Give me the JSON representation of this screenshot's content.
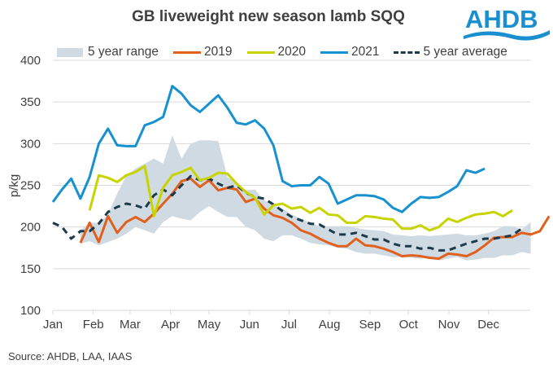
{
  "header": {
    "title": "GB liveweight  new season lamb SQQ",
    "logo_text": "AHDB"
  },
  "footer": {
    "source": "Source: AHDB, LAA, IAAS"
  },
  "colors": {
    "range": "#d0dae2",
    "s2019": "#e0601e",
    "s2020": "#c8d400",
    "s2021": "#1891d0",
    "avg": "#1c3a4a",
    "grid": "#d9d9d9",
    "text": "#404040",
    "logo": "#1a8fd0"
  },
  "chart_data": {
    "type": "line",
    "title": "GB liveweight  new season lamb SQQ",
    "xlabel": "",
    "ylabel": "p/kg",
    "ylim": [
      100,
      400
    ],
    "yticks": [
      100,
      150,
      200,
      250,
      300,
      350,
      400
    ],
    "x_unit": "week of year (1-52)",
    "month_ticks": [
      {
        "label": "Jan",
        "week": 1
      },
      {
        "label": "Feb",
        "week": 5.4
      },
      {
        "label": "Mar",
        "week": 9.4
      },
      {
        "label": "Apr",
        "week": 13.8
      },
      {
        "label": "May",
        "week": 18
      },
      {
        "label": "Jun",
        "week": 22.4
      },
      {
        "label": "Jul",
        "week": 26.7
      },
      {
        "label": "Aug",
        "week": 31.1
      },
      {
        "label": "Sep",
        "week": 35.5
      },
      {
        "label": "Oct",
        "week": 39.7
      },
      {
        "label": "Nov",
        "week": 44.1
      },
      {
        "label": "Dec",
        "week": 48.4
      }
    ],
    "grid": true,
    "legend_position": "top",
    "legend": [
      "5 year range",
      "2019",
      "2020",
      "2021",
      "5 year average"
    ],
    "range": {
      "name": "5 year range",
      "start_week": 4,
      "upper": [
        196,
        205,
        205,
        215,
        240,
        262,
        270,
        276,
        282,
        276,
        310,
        282,
        300,
        304,
        304,
        303,
        260,
        253,
        244,
        245,
        232,
        226,
        222,
        215,
        210,
        205,
        201,
        201,
        201,
        201,
        199,
        197,
        196,
        195,
        191,
        190,
        189,
        190,
        189,
        190,
        191,
        192,
        190,
        190,
        192,
        195,
        201,
        201,
        197,
        206
      ],
      "lower": [
        180,
        183,
        178,
        182,
        186,
        192,
        200,
        196,
        192,
        206,
        213,
        210,
        208,
        218,
        225,
        218,
        212,
        212,
        200,
        196,
        186,
        183,
        190,
        190,
        186,
        181,
        179,
        178,
        175,
        174,
        170,
        168,
        168,
        166,
        164,
        164,
        163,
        162,
        163,
        160,
        162,
        164,
        160,
        161,
        163,
        163,
        166,
        166,
        170,
        168
      ]
    },
    "series": [
      {
        "name": "2019",
        "start_week": 4,
        "values": [
          181,
          205,
          182,
          213,
          193,
          206,
          212,
          206,
          216,
          228,
          240,
          255,
          258,
          248,
          256,
          244,
          247,
          245,
          230,
          234,
          222,
          214,
          211,
          205,
          196,
          192,
          186,
          181,
          177,
          177,
          186,
          178,
          177,
          174,
          170,
          165,
          166,
          165,
          163,
          162,
          168,
          167,
          165,
          170,
          178,
          187,
          188,
          188,
          193,
          191,
          195,
          213
        ]
      },
      {
        "name": "2020",
        "start_week": 5,
        "values": [
          220,
          262,
          259,
          254,
          262,
          266,
          273,
          213,
          247,
          262,
          266,
          271,
          256,
          259,
          265,
          264,
          252,
          242,
          235,
          215,
          226,
          228,
          222,
          224,
          217,
          223,
          215,
          214,
          205,
          205,
          213,
          212,
          210,
          209,
          198,
          198,
          202,
          196,
          200,
          210,
          206,
          211,
          215,
          216,
          218,
          213,
          220
        ]
      },
      {
        "name": "2021",
        "start_week": 1,
        "values": [
          230,
          245,
          258,
          234,
          260,
          300,
          318,
          298,
          297,
          297,
          322,
          326,
          332,
          369,
          360,
          346,
          338,
          348,
          358,
          343,
          325,
          323,
          328,
          318,
          298,
          255,
          249,
          250,
          250,
          260,
          252,
          228,
          233,
          238,
          238,
          237,
          233,
          223,
          218,
          228,
          236,
          235,
          236,
          242,
          249,
          268,
          265,
          270
        ]
      },
      {
        "name": "5 year average",
        "start_week": 1,
        "values": [
          205,
          200,
          186,
          195,
          195,
          204,
          218,
          224,
          228,
          226,
          222,
          238,
          245,
          238,
          250,
          261,
          256,
          258,
          252,
          247,
          250,
          241,
          236,
          234,
          227,
          219,
          212,
          208,
          204,
          203,
          197,
          191,
          191,
          193,
          189,
          185,
          185,
          180,
          177,
          177,
          174,
          175,
          172,
          172,
          176,
          180,
          183,
          186,
          186,
          188,
          190,
          198
        ]
      }
    ]
  }
}
